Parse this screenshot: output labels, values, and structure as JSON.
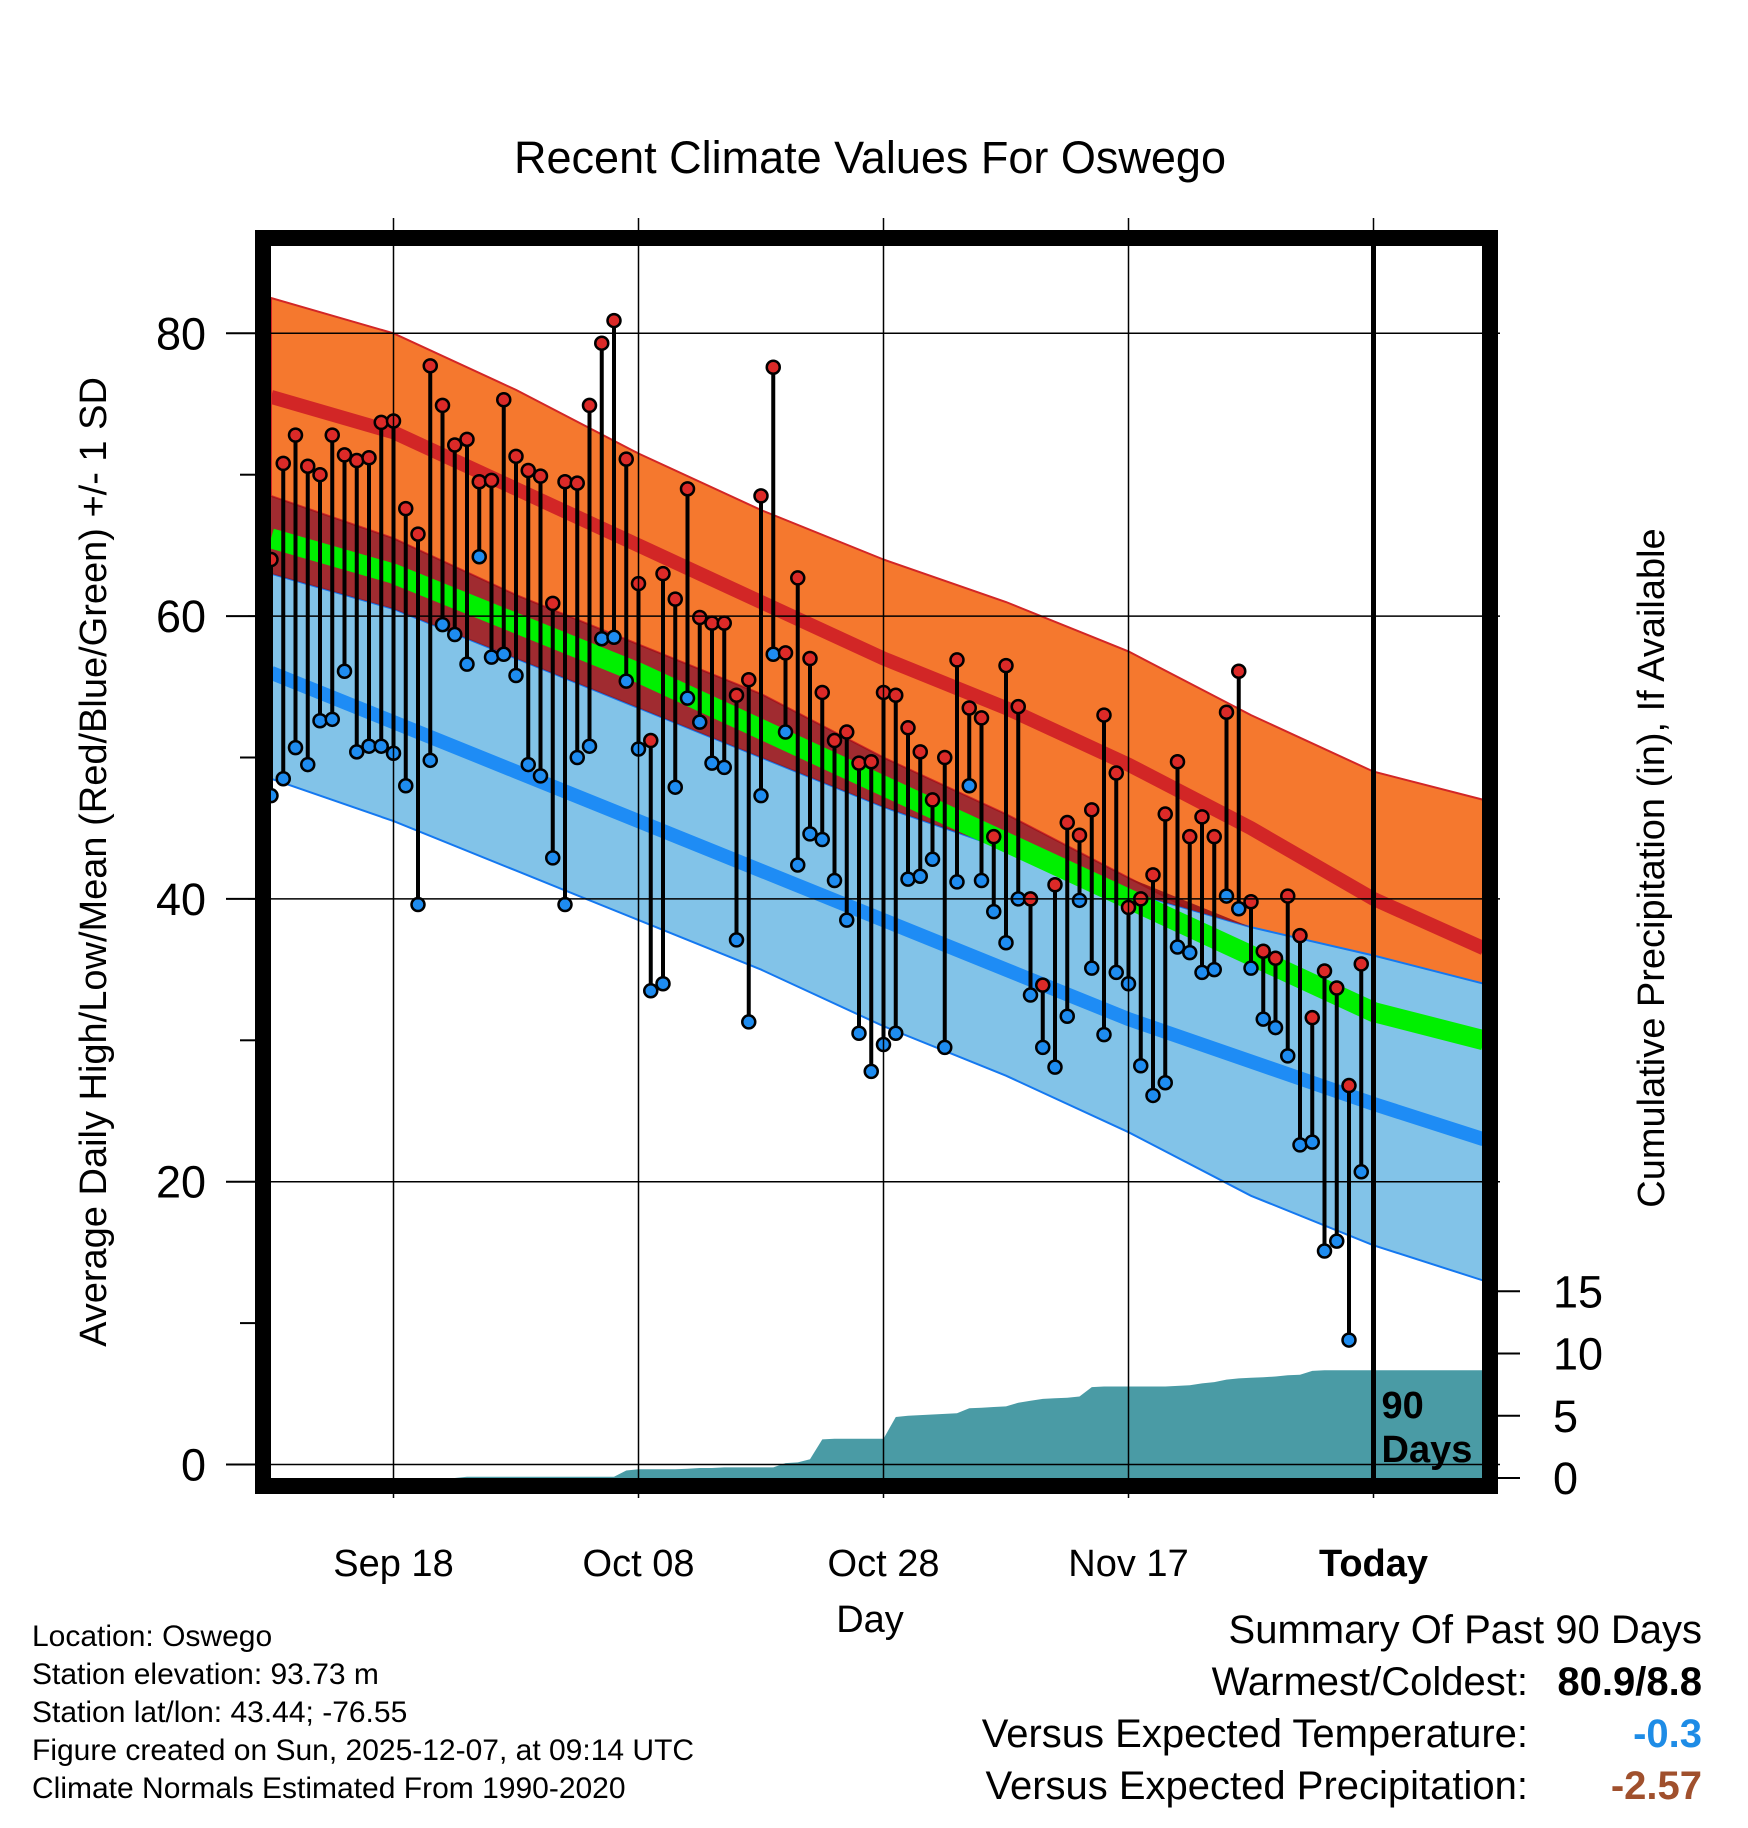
{
  "chart_data": {
    "type": "line",
    "title": "Recent Climate Values For Oswego",
    "xlabel": "Day",
    "ylabel": "Average Daily High/Low/Mean (Red/Blue/Green) +/- 1 SD",
    "y2label": "Cumulative Precipitation (in), If Available",
    "xlim": [
      0,
      99
    ],
    "ylim": [
      -1,
      86
    ],
    "y2lim": [
      0,
      19
    ],
    "x_ticks": [
      {
        "x": 10,
        "label": "Sep 18"
      },
      {
        "x": 30,
        "label": "Oct 08"
      },
      {
        "x": 50,
        "label": "Oct 28"
      },
      {
        "x": 70,
        "label": "Nov 17"
      },
      {
        "x": 90,
        "label": "Today"
      }
    ],
    "y_ticks": [
      0,
      20,
      40,
      60,
      80
    ],
    "y2_ticks": [
      0,
      5,
      10,
      15
    ],
    "today_x": 90,
    "today_label": [
      "90",
      "Days"
    ],
    "normals": {
      "x": [
        0,
        10,
        20,
        30,
        40,
        50,
        60,
        70,
        80,
        90,
        99
      ],
      "high_mean": [
        75.5,
        73,
        69,
        65,
        61,
        57,
        53.5,
        49.5,
        45,
        40,
        36.5
      ],
      "high_upper": [
        82.5,
        80,
        76,
        71.5,
        67.5,
        64,
        61,
        57.5,
        53,
        49,
        47
      ],
      "high_lower": [
        68.5,
        65.5,
        61.5,
        58,
        54.5,
        50,
        46,
        41.5,
        37,
        32,
        27
      ],
      "mean_mean": [
        65.5,
        63,
        59.5,
        56,
        52,
        48,
        44,
        40,
        36,
        32,
        30
      ],
      "low_mean": [
        56,
        52.5,
        49,
        45.5,
        42,
        38.5,
        35,
        31.5,
        28.5,
        25.5,
        23
      ],
      "low_upper": [
        63,
        60.5,
        57,
        53.5,
        50,
        46.5,
        43.5,
        40.5,
        38,
        36,
        34
      ],
      "low_lower": [
        48.5,
        45.5,
        42,
        38.5,
        35,
        31,
        27.5,
        23.5,
        19,
        15.5,
        13
      ]
    },
    "daily": {
      "x": [
        0,
        1,
        2,
        3,
        4,
        5,
        6,
        7,
        8,
        9,
        10,
        11,
        12,
        13,
        14,
        15,
        16,
        17,
        18,
        19,
        20,
        21,
        22,
        23,
        24,
        25,
        26,
        27,
        28,
        29,
        30,
        31,
        32,
        33,
        34,
        35,
        36,
        37,
        38,
        39,
        40,
        41,
        42,
        43,
        44,
        45,
        46,
        47,
        48,
        49,
        50,
        51,
        52,
        53,
        54,
        55,
        56,
        57,
        58,
        59,
        60,
        61,
        62,
        63,
        64,
        65,
        66,
        67,
        68,
        69,
        70,
        71,
        72,
        73,
        74,
        75,
        76,
        77,
        78,
        79,
        80,
        81,
        82,
        83,
        84,
        85,
        86,
        87,
        88,
        89
      ],
      "high": [
        64,
        70.8,
        72.8,
        70.6,
        70,
        72.8,
        71.4,
        71,
        71.2,
        73.7,
        73.8,
        67.6,
        65.8,
        77.7,
        74.9,
        72.1,
        72.5,
        69.5,
        69.6,
        75.3,
        71.3,
        70.3,
        69.9,
        60.9,
        69.5,
        69.4,
        74.9,
        79.3,
        80.9,
        71.1,
        62.3,
        51.2,
        63,
        61.2,
        69,
        59.9,
        59.5,
        59.5,
        54.4,
        55.5,
        68.5,
        77.6,
        57.4,
        62.7,
        57,
        54.6,
        51.2,
        51.8,
        49.6,
        49.7,
        54.6,
        54.4,
        52.1,
        50.4,
        47,
        50,
        56.9,
        53.5,
        52.8,
        44.4,
        56.5,
        53.6,
        40,
        33.9,
        41,
        45.4,
        44.5,
        46.3,
        53,
        48.9,
        39.4,
        40,
        41.7,
        46,
        49.7,
        44.4,
        45.8,
        44.4,
        53.2,
        56.1,
        39.8,
        36.3,
        35.8,
        40.2,
        37.4,
        31.6,
        34.9,
        33.7,
        26.8,
        35.4
      ],
      "low": [
        47.3,
        48.5,
        50.7,
        49.5,
        52.6,
        52.7,
        56.1,
        50.4,
        50.8,
        50.8,
        50.3,
        48,
        39.6,
        49.8,
        59.4,
        58.7,
        56.6,
        64.2,
        57.1,
        57.3,
        55.8,
        49.5,
        48.7,
        42.9,
        39.6,
        50,
        50.8,
        58.4,
        58.5,
        55.4,
        50.6,
        33.5,
        34,
        47.9,
        54.2,
        52.5,
        49.6,
        49.3,
        37.1,
        31.3,
        47.3,
        57.3,
        51.8,
        42.4,
        44.6,
        44.2,
        41.3,
        38.5,
        30.5,
        27.8,
        29.7,
        30.5,
        41.4,
        41.6,
        42.8,
        29.5,
        41.2,
        48,
        41.3,
        39.1,
        36.9,
        40,
        33.2,
        29.5,
        28.1,
        31.7,
        39.9,
        35.1,
        30.4,
        34.8,
        34,
        28.2,
        26.1,
        27,
        36.6,
        36.2,
        34.8,
        35,
        40.2,
        39.3,
        35.1,
        31.5,
        30.9,
        28.9,
        22.6,
        22.8,
        15.1,
        15.8,
        8.8,
        20.7
      ]
    },
    "precip": {
      "x": [
        0,
        15,
        16,
        27,
        28,
        29,
        30,
        31,
        32,
        33,
        34,
        35,
        36,
        37,
        38,
        39,
        40,
        41,
        42,
        43,
        44,
        45,
        46,
        47,
        48,
        49,
        50,
        51,
        52,
        53,
        54,
        55,
        56,
        57,
        58,
        59,
        60,
        61,
        62,
        63,
        64,
        65,
        66,
        67,
        68,
        69,
        70,
        71,
        72,
        73,
        74,
        75,
        76,
        77,
        78,
        79,
        80,
        81,
        82,
        83,
        84,
        85,
        86,
        87,
        88,
        89,
        90,
        99
      ],
      "cum": [
        0,
        0,
        0.1,
        0.1,
        0.1,
        0.6,
        0.7,
        0.7,
        0.7,
        0.7,
        0.75,
        0.8,
        0.8,
        0.85,
        0.85,
        0.85,
        0.85,
        0.85,
        1.2,
        1.25,
        1.5,
        3.1,
        3.15,
        3.15,
        3.15,
        3.15,
        3.15,
        4.9,
        5,
        5.05,
        5.1,
        5.15,
        5.2,
        5.6,
        5.65,
        5.7,
        5.75,
        6.05,
        6.2,
        6.35,
        6.4,
        6.45,
        6.55,
        7.3,
        7.35,
        7.35,
        7.35,
        7.35,
        7.35,
        7.35,
        7.4,
        7.45,
        7.6,
        7.7,
        7.9,
        8.0,
        8.05,
        8.1,
        8.15,
        8.25,
        8.3,
        8.6,
        8.65,
        8.65,
        8.65,
        8.65,
        8.65,
        8.65
      ]
    },
    "colors": {
      "high_band": "#f5782e",
      "high_line": "#d22626",
      "high_dark": "#961419",
      "mean_line": "#00f000",
      "low_band": "#82c3e8",
      "low_line": "#1e8cf5",
      "low_edge": "#1478f0",
      "precip": "#4a9ba5",
      "high_dot": "#dc2a28",
      "low_dot": "#1e8cf0"
    }
  },
  "info": {
    "location": "Location: Oswego",
    "elevation": "Station elevation: 93.73 m",
    "latlon": "Station lat/lon: 43.44; -76.55",
    "created": "Figure created on Sun, 2025-12-07, at 09:14 UTC",
    "normals": "Climate Normals Estimated From 1990-2020"
  },
  "summary": {
    "title": "Summary Of Past 90 Days",
    "warm_cold_label": "Warmest/Coldest:",
    "warm_cold_value": "80.9/8.8",
    "temp_label": "Versus Expected Temperature:",
    "temp_value": "-0.3",
    "temp_color": "#1e8ce6",
    "precip_label": "Versus Expected Precipitation:",
    "precip_value": "-2.57",
    "precip_color": "#a0502d"
  }
}
